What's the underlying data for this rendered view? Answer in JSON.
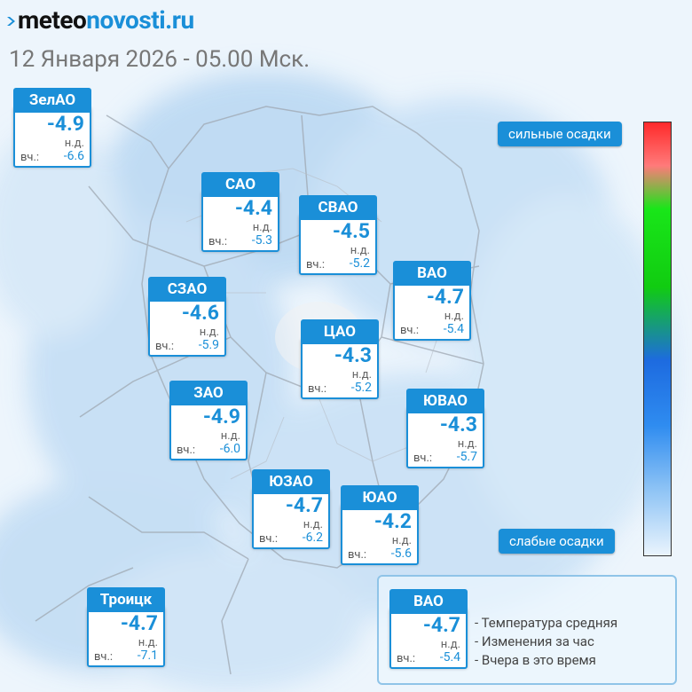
{
  "brand": {
    "accent": "#1a8fd8",
    "part1": "meteo",
    "part2": "novosti.ru"
  },
  "date_text": "12 Января 2026 - 05.00 Мск.",
  "labels": {
    "nd": "н.д.",
    "prev": "вч.:"
  },
  "districts": [
    {
      "id": "zelao",
      "name": "ЗелАО",
      "temp": "-4.9",
      "nd": "н.д.",
      "prev_label": "вч.:",
      "prev": "-6.6"
    },
    {
      "id": "sao",
      "name": "САО",
      "temp": "-4.4",
      "nd": "н.д.",
      "prev_label": "вч.:",
      "prev": "-5.3"
    },
    {
      "id": "svao",
      "name": "СВАО",
      "temp": "-4.5",
      "nd": "н.д.",
      "prev_label": "вч.:",
      "prev": "-5.2"
    },
    {
      "id": "vao",
      "name": "ВАО",
      "temp": "-4.7",
      "nd": "н.д.",
      "prev_label": "вч.:",
      "prev": "-5.4"
    },
    {
      "id": "szao",
      "name": "СЗАО",
      "temp": "-4.6",
      "nd": "н.д.",
      "prev_label": "вч.:",
      "prev": "-5.9"
    },
    {
      "id": "cao",
      "name": "ЦАО",
      "temp": "-4.3",
      "nd": "н.д.",
      "prev_label": "вч.:",
      "prev": "-5.2"
    },
    {
      "id": "zao",
      "name": "ЗАО",
      "temp": "-4.9",
      "nd": "н.д.",
      "prev_label": "вч.:",
      "prev": "-6.0"
    },
    {
      "id": "yuvao",
      "name": "ЮВАО",
      "temp": "-4.3",
      "nd": "н.д.",
      "prev_label": "вч.:",
      "prev": "-5.7"
    },
    {
      "id": "yuzao",
      "name": "ЮЗАО",
      "temp": "-4.7",
      "nd": "н.д.",
      "prev_label": "вч.:",
      "prev": "-6.2"
    },
    {
      "id": "yuao",
      "name": "ЮАО",
      "temp": "-4.2",
      "nd": "н.д.",
      "prev_label": "вч.:",
      "prev": "-5.6"
    },
    {
      "id": "troitsk",
      "name": "Троицк",
      "temp": "-4.7",
      "nd": "н.д.",
      "prev_label": "вч.:",
      "prev": "-7.1"
    }
  ],
  "scale": {
    "top_label": "сильные осадки",
    "bottom_label": "слабые осадки"
  },
  "legend": {
    "sample": {
      "name": "ВАО",
      "temp": "-4.7",
      "nd": "н.д.",
      "prev_label": "вч.:",
      "prev": "-5.4"
    },
    "items": [
      "- Температура средняя",
      "- Изменения за час",
      "- Вчера в это время"
    ]
  }
}
